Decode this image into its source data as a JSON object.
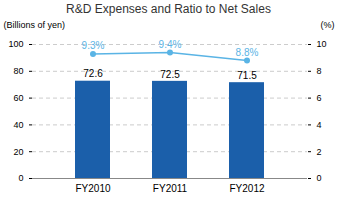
{
  "chart_data": {
    "type": "bar",
    "title": "R&D Expenses and Ratio to Net Sales",
    "categories": [
      "FY2010",
      "FY2011",
      "FY2012"
    ],
    "series": [
      {
        "type": "bar",
        "color": "#1b5faa",
        "values": [
          72.6,
          72.5,
          71.5
        ],
        "data_labels": true
      },
      {
        "type": "line",
        "axis": "y2",
        "color": "#5ab4e5",
        "marker": "circle",
        "values": [
          9.3,
          9.4,
          8.8
        ],
        "value_labels": [
          "9.3%",
          "9.4%",
          "8.8%"
        ],
        "data_labels": true
      }
    ],
    "ylabel": "(Billions of yen)",
    "y2label": "(%)",
    "ylim": [
      0,
      100
    ],
    "yticks": [
      0,
      20,
      40,
      60,
      80,
      100
    ],
    "y2lim": [
      0,
      10
    ],
    "y2ticks": [
      0,
      2,
      4,
      6,
      8,
      10
    ],
    "grid": true
  }
}
